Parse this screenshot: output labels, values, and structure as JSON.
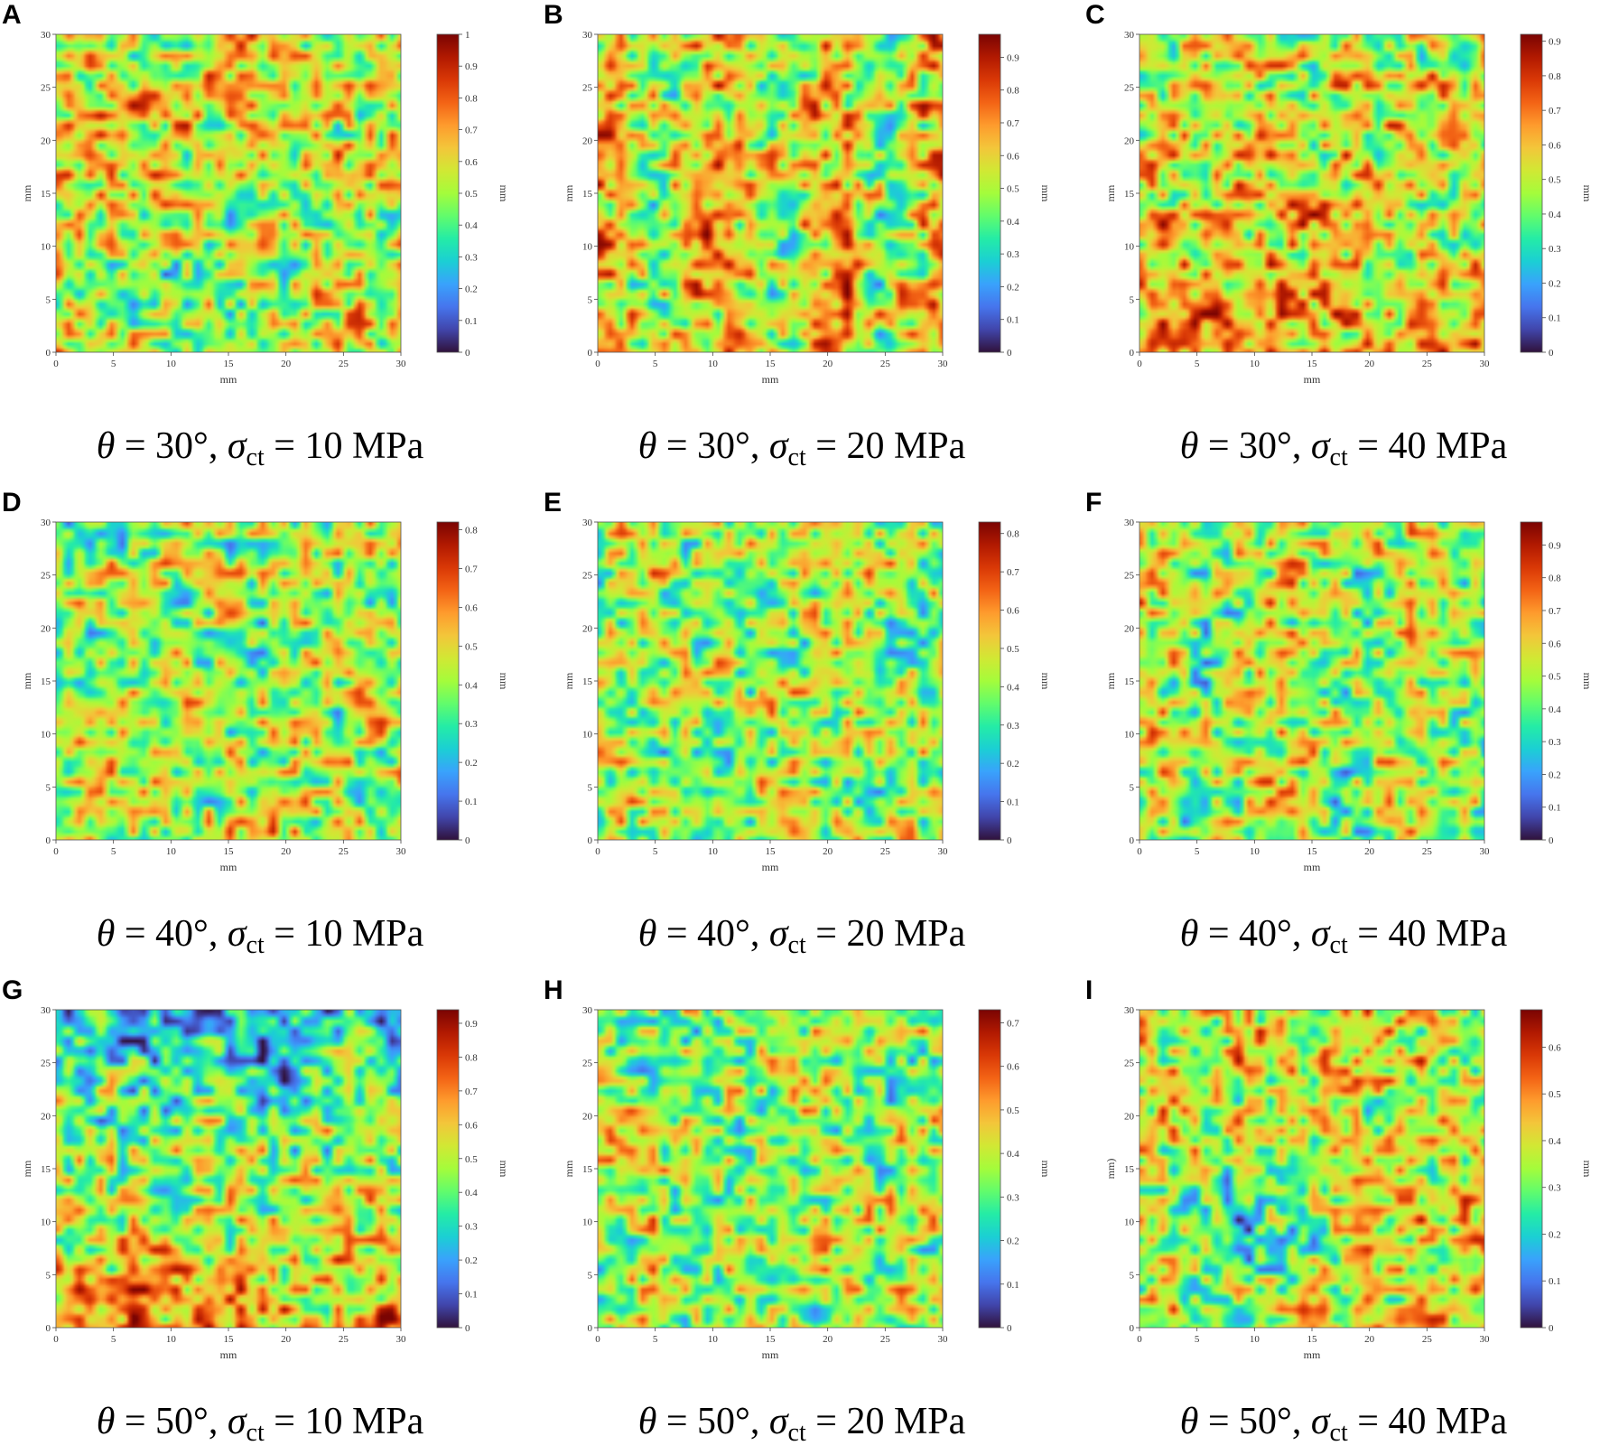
{
  "chart_data": [
    {
      "id": "A",
      "type": "heatmap",
      "xlabel": "mm",
      "ylabel": "mm",
      "cbar_label": "mm",
      "xlim": [
        0,
        30
      ],
      "ylim": [
        0,
        30
      ],
      "xticks": [
        0,
        5,
        10,
        15,
        20,
        25,
        30
      ],
      "yticks": [
        0,
        5,
        10,
        15,
        20,
        25,
        30
      ],
      "cmax": 1.0,
      "cbar_ticks": [
        0,
        0.1,
        0.2,
        0.3,
        0.4,
        0.5,
        0.6,
        0.7,
        0.8,
        0.9,
        1
      ],
      "caption": {
        "theta": "30°",
        "sigma": "10 MPa"
      }
    },
    {
      "id": "B",
      "type": "heatmap",
      "xlabel": "mm",
      "ylabel": "mm",
      "cbar_label": "mm",
      "xlim": [
        0,
        30
      ],
      "ylim": [
        0,
        30
      ],
      "xticks": [
        0,
        5,
        10,
        15,
        20,
        25,
        30
      ],
      "yticks": [
        0,
        5,
        10,
        15,
        20,
        25,
        30
      ],
      "cmax": 0.97,
      "cbar_ticks": [
        0,
        0.1,
        0.2,
        0.3,
        0.4,
        0.5,
        0.6,
        0.7,
        0.8,
        0.9
      ],
      "caption": {
        "theta": "30°",
        "sigma": "20 MPa"
      }
    },
    {
      "id": "C",
      "type": "heatmap",
      "xlabel": "mm",
      "ylabel": "mm",
      "cbar_label": "mm",
      "xlim": [
        0,
        30
      ],
      "ylim": [
        0,
        30
      ],
      "xticks": [
        0,
        5,
        10,
        15,
        20,
        25,
        30
      ],
      "yticks": [
        0,
        5,
        10,
        15,
        20,
        25,
        30
      ],
      "cmax": 0.92,
      "cbar_ticks": [
        0,
        0.1,
        0.2,
        0.3,
        0.4,
        0.5,
        0.6,
        0.7,
        0.8,
        0.9
      ],
      "caption": {
        "theta": "30°",
        "sigma": "40 MPa"
      }
    },
    {
      "id": "D",
      "type": "heatmap",
      "xlabel": "mm",
      "ylabel": "mm",
      "cbar_label": "mm",
      "xlim": [
        0,
        30
      ],
      "ylim": [
        0,
        30
      ],
      "xticks": [
        0,
        5,
        10,
        15,
        20,
        25,
        30
      ],
      "yticks": [
        0,
        5,
        10,
        15,
        20,
        25,
        30
      ],
      "cmax": 0.82,
      "cbar_ticks": [
        0,
        0.1,
        0.2,
        0.3,
        0.4,
        0.5,
        0.6,
        0.7,
        0.8
      ],
      "caption": {
        "theta": "40°",
        "sigma": "10 MPa"
      }
    },
    {
      "id": "E",
      "type": "heatmap",
      "xlabel": "mm",
      "ylabel": "mm",
      "cbar_label": "mm",
      "xlim": [
        0,
        30
      ],
      "ylim": [
        0,
        30
      ],
      "xticks": [
        0,
        5,
        10,
        15,
        20,
        25,
        30
      ],
      "yticks": [
        0,
        5,
        10,
        15,
        20,
        25,
        30
      ],
      "cmax": 0.83,
      "cbar_ticks": [
        0,
        0.1,
        0.2,
        0.3,
        0.4,
        0.5,
        0.6,
        0.7,
        0.8
      ],
      "caption": {
        "theta": "40°",
        "sigma": "20 MPa"
      }
    },
    {
      "id": "F",
      "type": "heatmap",
      "xlabel": "mm",
      "ylabel": "mm",
      "cbar_label": "mm",
      "xlim": [
        0,
        30
      ],
      "ylim": [
        0,
        30
      ],
      "xticks": [
        0,
        5,
        10,
        15,
        20,
        25,
        30
      ],
      "yticks": [
        0,
        5,
        10,
        15,
        20,
        25,
        30
      ],
      "cmax": 0.97,
      "cbar_ticks": [
        0,
        0.1,
        0.2,
        0.3,
        0.4,
        0.5,
        0.6,
        0.7,
        0.8,
        0.9
      ],
      "caption": {
        "theta": "40°",
        "sigma": "40 MPa"
      }
    },
    {
      "id": "G",
      "type": "heatmap",
      "xlabel": "mm",
      "ylabel": "mm",
      "cbar_label": "mm",
      "xlim": [
        0,
        30
      ],
      "ylim": [
        0,
        30
      ],
      "xticks": [
        0,
        5,
        10,
        15,
        20,
        25,
        30
      ],
      "yticks": [
        0,
        5,
        10,
        15,
        20,
        25,
        30
      ],
      "cmax": 0.94,
      "cbar_ticks": [
        0,
        0.1,
        0.2,
        0.3,
        0.4,
        0.5,
        0.6,
        0.7,
        0.8,
        0.9
      ],
      "caption": {
        "theta": "50°",
        "sigma": "10 MPa"
      }
    },
    {
      "id": "H",
      "type": "heatmap",
      "xlabel": "mm",
      "ylabel": "mm",
      "cbar_label": "mm",
      "xlim": [
        0,
        30
      ],
      "ylim": [
        0,
        30
      ],
      "xticks": [
        0,
        5,
        10,
        15,
        20,
        25,
        30
      ],
      "yticks": [
        0,
        5,
        10,
        15,
        20,
        25,
        30
      ],
      "cmax": 0.73,
      "cbar_ticks": [
        0,
        0.1,
        0.2,
        0.3,
        0.4,
        0.5,
        0.6,
        0.7
      ],
      "caption": {
        "theta": "50°",
        "sigma": "20 MPa"
      }
    },
    {
      "id": "I",
      "type": "heatmap",
      "xlabel": "mm",
      "ylabel": "mm)",
      "cbar_label": "mm",
      "xlim": [
        0,
        30
      ],
      "ylim": [
        0,
        30
      ],
      "xticks": [
        0,
        5,
        10,
        15,
        20,
        25,
        30
      ],
      "yticks": [
        0,
        5,
        10,
        15,
        20,
        25,
        30
      ],
      "cmax": 0.68,
      "cbar_ticks": [
        0,
        0.1,
        0.2,
        0.3,
        0.4,
        0.5,
        0.6
      ],
      "caption": {
        "theta": "50°",
        "sigma": "40 MPa"
      }
    }
  ],
  "colormap": [
    "#30123b",
    "#4145ab",
    "#4675ed",
    "#39a2fc",
    "#1bcfd4",
    "#24eca6",
    "#61fc6c",
    "#a4fc3b",
    "#d1e834",
    "#f3c63a",
    "#fe9b2d",
    "#f36315",
    "#d93806",
    "#b11901",
    "#7a0403"
  ],
  "caption_symbols": {
    "theta": "θ",
    "sigma": "σ",
    "sub": "ct",
    "eq": " = ",
    "sep": ", "
  }
}
